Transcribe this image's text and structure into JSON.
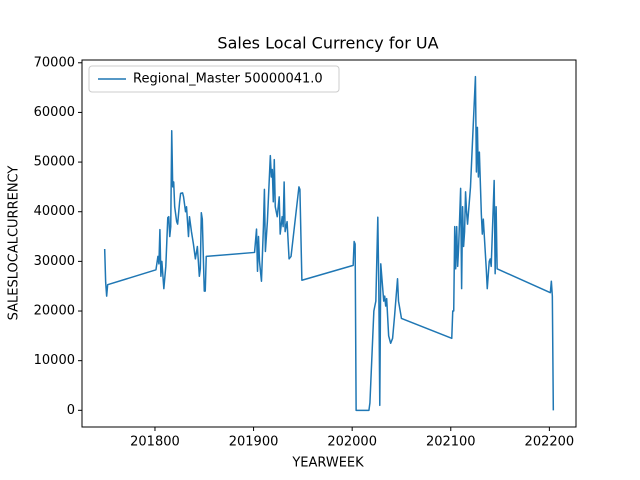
{
  "chart_data": {
    "type": "line",
    "title": "Sales Local Currency for UA",
    "xlabel": "YEARWEEK",
    "ylabel": "SALESLOCALCURRENCY",
    "x": [
      201749,
      201750,
      201751,
      201752,
      201801,
      201803,
      201804,
      201805,
      201806,
      201807,
      201809,
      201811,
      201813,
      201814,
      201815,
      201816,
      201817,
      201818,
      201819,
      201820,
      201822,
      201823,
      201825,
      201826,
      201828,
      201829,
      201831,
      201832,
      201834,
      201835,
      201837,
      201839,
      201841,
      201843,
      201845,
      201846,
      201847,
      201848,
      201850,
      201851,
      201852,
      201901,
      201903,
      201904,
      201905,
      201906,
      201908,
      201910,
      201911,
      201912,
      201914,
      201917,
      201918,
      201919,
      201920,
      201921,
      201922,
      201924,
      201926,
      201927,
      201929,
      201930,
      201931,
      201932,
      201934,
      201936,
      201938,
      201946,
      201947,
      201949,
      202001,
      202002,
      202003,
      202004,
      202017,
      202018,
      202022,
      202024,
      202026,
      202027,
      202028,
      202029,
      202030,
      202032,
      202033,
      202034,
      202035,
      202037,
      202039,
      202041,
      202043,
      202046,
      202047,
      202050,
      202101,
      202102,
      202103,
      202104,
      202105,
      202106,
      202107,
      202108,
      202110,
      202111,
      202112,
      202113,
      202114,
      202115,
      202116,
      202117,
      202120,
      202122,
      202125,
      202126,
      202127,
      202128,
      202129,
      202131,
      202132,
      202133,
      202136,
      202137,
      202139,
      202140,
      202141,
      202144,
      202145,
      202146,
      202147,
      202201,
      202202,
      202203,
      202204
    ],
    "series": [
      {
        "name": "Regional_Master 50000041.0",
        "color": "#1f77b4",
        "values": [
          32500,
          25800,
          23000,
          25300,
          28300,
          31000,
          29500,
          36400,
          27000,
          30000,
          24500,
          29000,
          38800,
          39000,
          35000,
          37000,
          56300,
          45000,
          46000,
          41000,
          38000,
          37500,
          42000,
          43700,
          43800,
          43000,
          40000,
          41000,
          35000,
          39000,
          36000,
          33500,
          30500,
          33000,
          27000,
          28500,
          39800,
          38500,
          24000,
          24000,
          31000,
          31800,
          36500,
          28000,
          35000,
          30000,
          26000,
          37000,
          44500,
          32000,
          38000,
          51300,
          47000,
          48500,
          42000,
          50500,
          41000,
          39000,
          43000,
          35500,
          39000,
          37000,
          46000,
          36000,
          38000,
          30500,
          31000,
          45000,
          44500,
          26200,
          29200,
          34000,
          33500,
          0,
          0,
          1500,
          20000,
          22000,
          38900,
          25000,
          1000,
          29500,
          27000,
          22000,
          23000,
          21000,
          22500,
          15000,
          13500,
          14500,
          19000,
          26500,
          22000,
          18500,
          14500,
          20000,
          20000,
          37000,
          28500,
          37000,
          29000,
          33000,
          44700,
          24500,
          41000,
          33000,
          36000,
          44000,
          40000,
          37500,
          45000,
          54000,
          67200,
          48000,
          57000,
          47000,
          52000,
          39500,
          35500,
          38500,
          28500,
          24500,
          30000,
          30500,
          29000,
          46300,
          27500,
          41000,
          28500,
          23700,
          26000,
          23000,
          0
        ]
      }
    ],
    "xlim": [
      201726,
      202227
    ],
    "ylim": [
      -3360,
      70560
    ],
    "xticks": [
      201800,
      201900,
      202000,
      202100,
      202200
    ],
    "yticks": [
      0,
      10000,
      20000,
      30000,
      40000,
      50000,
      60000,
      70000
    ],
    "legend": "upper left"
  }
}
